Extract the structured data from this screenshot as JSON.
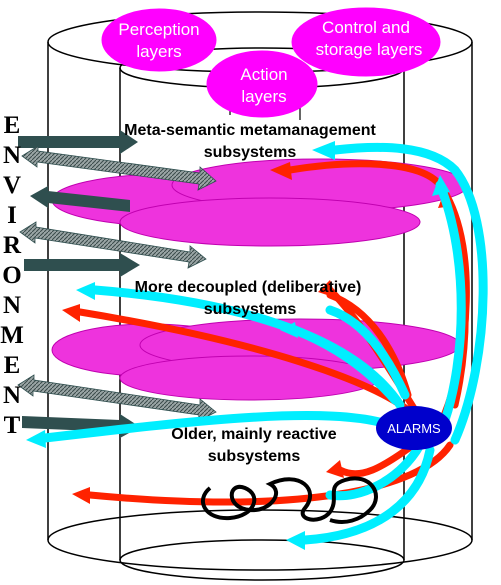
{
  "environment": {
    "letters": [
      "E",
      "N",
      "V",
      "I",
      "R",
      "O",
      "N",
      "M",
      "E",
      "N",
      "T"
    ]
  },
  "top_ovals": {
    "perception": {
      "line1": "Perception",
      "line2": "layers"
    },
    "control": {
      "line1": "Control and",
      "line2": "storage layers"
    },
    "action": {
      "line1": "Action",
      "line2": "layers"
    }
  },
  "layers": {
    "meta": {
      "line1": "Meta-semantic metamanagement",
      "line2": "subsystems"
    },
    "deliberative": {
      "line1": "More decoupled (deliberative)",
      "line2": "subsystems"
    },
    "reactive": {
      "line1": "Older, mainly reactive",
      "line2": "subsystems"
    }
  },
  "alarms": {
    "label": "ALARMS"
  },
  "colors": {
    "magenta": "#ff00ff",
    "disc": "#ee33dd",
    "red": "#ff2200",
    "cyan": "#00eeff",
    "alarm_blue": "#0000cc",
    "env_arrow": "#2f4f4f",
    "env_arrow_hatched": "#8a9a9a"
  }
}
